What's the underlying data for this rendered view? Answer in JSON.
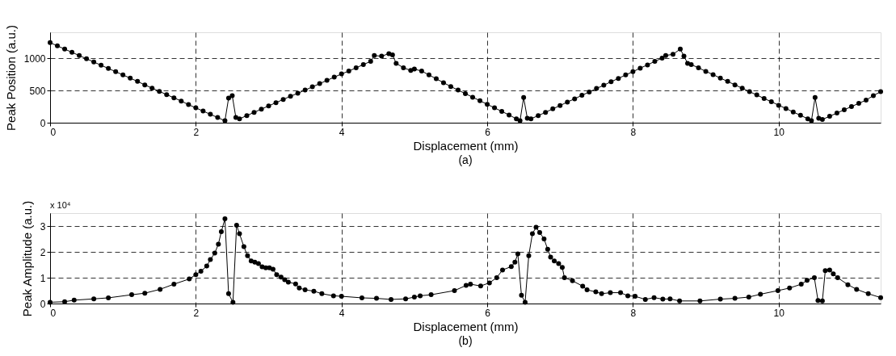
{
  "chart_data": [
    {
      "type": "line",
      "xlabel": "Displacement (mm)",
      "ylabel": "Peak Position (a.u.)",
      "annotations": [
        "(a)"
      ],
      "xlim": [
        0,
        11.4
      ],
      "xticks": [
        0,
        2,
        4,
        6,
        8,
        10
      ],
      "ylim": [
        0,
        1400
      ],
      "yticks": [
        0,
        500,
        1000
      ],
      "grid": true,
      "marker": "circle",
      "line_style": "solid",
      "series": [
        {
          "color": "#000000",
          "x": [
            0,
            0.1,
            0.2,
            0.3,
            0.4,
            0.5,
            0.6,
            0.7,
            0.8,
            0.9,
            1.0,
            1.1,
            1.2,
            1.3,
            1.4,
            1.5,
            1.6,
            1.7,
            1.8,
            1.9,
            2.0,
            2.1,
            2.2,
            2.3,
            2.4,
            2.45,
            2.5,
            2.55,
            2.6,
            2.7,
            2.8,
            2.9,
            3.0,
            3.1,
            3.2,
            3.3,
            3.4,
            3.5,
            3.6,
            3.7,
            3.8,
            3.9,
            4.0,
            4.1,
            4.2,
            4.3,
            4.4,
            4.45,
            4.55,
            4.65,
            4.7,
            4.75,
            4.85,
            4.95,
            5.0,
            5.1,
            5.2,
            5.3,
            5.4,
            5.5,
            5.6,
            5.7,
            5.8,
            5.9,
            6.0,
            6.1,
            6.2,
            6.3,
            6.4,
            6.45,
            6.5,
            6.55,
            6.6,
            6.7,
            6.8,
            6.9,
            7.0,
            7.1,
            7.2,
            7.3,
            7.4,
            7.5,
            7.6,
            7.7,
            7.8,
            7.9,
            8.0,
            8.1,
            8.2,
            8.3,
            8.4,
            8.45,
            8.55,
            8.65,
            8.7,
            8.75,
            8.8,
            8.9,
            9.0,
            9.1,
            9.2,
            9.3,
            9.4,
            9.5,
            9.6,
            9.7,
            9.8,
            9.9,
            10.0,
            10.1,
            10.2,
            10.3,
            10.4,
            10.45,
            10.5,
            10.55,
            10.6,
            10.7,
            10.8,
            10.9,
            11.0,
            11.1,
            11.2,
            11.3,
            11.4
          ],
          "values": [
            1240,
            1190,
            1140,
            1090,
            1040,
            990,
            940,
            890,
            840,
            790,
            740,
            690,
            640,
            585,
            535,
            485,
            435,
            385,
            335,
            280,
            230,
            180,
            130,
            80,
            30,
            380,
            420,
            80,
            60,
            110,
            160,
            210,
            260,
            310,
            360,
            410,
            455,
            505,
            555,
            605,
            655,
            705,
            755,
            800,
            850,
            900,
            950,
            1040,
            1030,
            1070,
            1050,
            920,
            850,
            810,
            830,
            800,
            740,
            680,
            620,
            560,
            505,
            450,
            395,
            340,
            285,
            230,
            175,
            120,
            60,
            30,
            390,
            70,
            60,
            110,
            160,
            215,
            265,
            320,
            370,
            425,
            475,
            530,
            580,
            635,
            685,
            740,
            790,
            845,
            895,
            950,
            1000,
            1040,
            1060,
            1140,
            1030,
            920,
            900,
            850,
            795,
            745,
            690,
            640,
            585,
            535,
            480,
            430,
            375,
            325,
            270,
            220,
            165,
            115,
            60,
            30,
            390,
            70,
            50,
            100,
            150,
            200,
            250,
            300,
            350,
            420,
            480
          ]
        }
      ]
    },
    {
      "type": "line",
      "xlabel": "Displacement (mm)",
      "ylabel": "Peak Amplitude (a.u.)",
      "annotations": [
        "x 10⁴",
        "(b)"
      ],
      "xlim": [
        0,
        11.4
      ],
      "xticks": [
        0,
        2,
        4,
        6,
        8,
        10
      ],
      "ylim": [
        0,
        3.5
      ],
      "yticks": [
        0,
        1,
        2,
        3
      ],
      "grid": true,
      "marker": "circle",
      "line_style": "solid",
      "series": [
        {
          "color": "#000000",
          "x": [
            0,
            0.2,
            0.33,
            0.6,
            0.8,
            1.12,
            1.3,
            1.51,
            1.7,
            1.91,
            2.0,
            2.07,
            2.15,
            2.2,
            2.26,
            2.31,
            2.35,
            2.4,
            2.45,
            2.51,
            2.56,
            2.6,
            2.66,
            2.71,
            2.76,
            2.81,
            2.86,
            2.91,
            2.96,
            3.01,
            3.06,
            3.11,
            3.17,
            3.22,
            3.27,
            3.37,
            3.42,
            3.5,
            3.62,
            3.73,
            3.89,
            4.0,
            4.28,
            4.48,
            4.68,
            4.88,
            5.0,
            5.08,
            5.23,
            5.55,
            5.71,
            5.77,
            5.91,
            6.03,
            6.13,
            6.21,
            6.33,
            6.38,
            6.42,
            6.47,
            6.52,
            6.57,
            6.62,
            6.67,
            6.72,
            6.78,
            6.83,
            6.87,
            6.92,
            6.98,
            7.03,
            7.06,
            7.17,
            7.31,
            7.37,
            7.49,
            7.57,
            7.69,
            7.83,
            7.93,
            8.03,
            8.17,
            8.29,
            8.41,
            8.51,
            8.64,
            8.92,
            9.2,
            9.4,
            9.59,
            9.75,
            9.99,
            10.15,
            10.31,
            10.39,
            10.49,
            10.54,
            10.6,
            10.64,
            10.7,
            10.75,
            10.81,
            10.95,
            11.07,
            11.23,
            11.4
          ],
          "values": [
            0.05,
            0.07,
            0.13,
            0.18,
            0.22,
            0.34,
            0.4,
            0.55,
            0.75,
            0.95,
            1.12,
            1.25,
            1.45,
            1.7,
            1.95,
            2.3,
            2.78,
            3.28,
            0.38,
            0.05,
            3.03,
            2.7,
            2.2,
            1.85,
            1.65,
            1.6,
            1.55,
            1.42,
            1.38,
            1.38,
            1.33,
            1.12,
            1.02,
            0.92,
            0.83,
            0.76,
            0.6,
            0.53,
            0.48,
            0.38,
            0.3,
            0.28,
            0.22,
            0.2,
            0.16,
            0.18,
            0.25,
            0.3,
            0.34,
            0.5,
            0.7,
            0.75,
            0.68,
            0.8,
            1.0,
            1.3,
            1.43,
            1.6,
            1.92,
            0.32,
            0.05,
            1.85,
            2.7,
            2.95,
            2.75,
            2.5,
            2.1,
            1.8,
            1.65,
            1.55,
            1.4,
            1.0,
            0.88,
            0.67,
            0.53,
            0.45,
            0.38,
            0.42,
            0.42,
            0.3,
            0.28,
            0.16,
            0.23,
            0.17,
            0.18,
            0.1,
            0.1,
            0.17,
            0.2,
            0.25,
            0.36,
            0.5,
            0.6,
            0.75,
            0.9,
            1.0,
            0.12,
            0.1,
            1.27,
            1.3,
            1.15,
            1.0,
            0.73,
            0.55,
            0.38,
            0.23
          ]
        }
      ]
    }
  ]
}
